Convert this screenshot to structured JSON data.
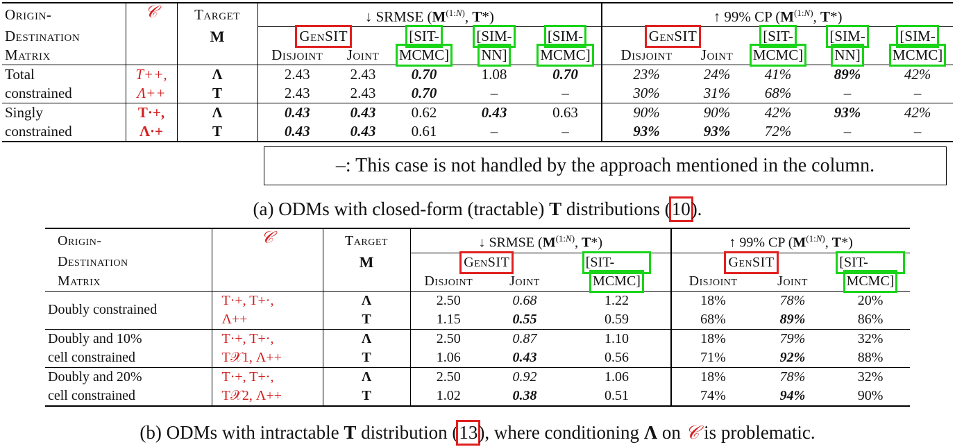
{
  "table_a": {
    "header": {
      "odm_l1": "Origin-",
      "odm_l2": "Destination",
      "odm_l3": "Matrix",
      "c": "𝒞",
      "target_l1": "Target",
      "target_l2": "M",
      "srmse": "↓ SRMSE (M(1:N), T*)",
      "cp": "↑ 99% CP (M(1:N), T*)",
      "gensit": "GenSIT",
      "disjoint": "Disjoint",
      "joint": "Joint",
      "sit_l1": "[SIT-",
      "sit_l2": "MCMC]",
      "simnn_l1": "[SIM-",
      "simnn_l2": "NN]",
      "simmcmc_l1": "[SIM-",
      "simmcmc_l2": "MCMC]"
    },
    "rows": [
      {
        "odm": "Total",
        "c": "T++,",
        "target": "Λ",
        "v": [
          "2.43",
          "2.43",
          "0.70",
          "1.08",
          "0.70",
          "23%",
          "24%",
          "41%",
          "89%",
          "42%"
        ]
      },
      {
        "odm": "constrained",
        "c": "Λ++",
        "target": "T",
        "v": [
          "2.43",
          "2.43",
          "0.70",
          "–",
          "–",
          "30%",
          "31%",
          "68%",
          "–",
          "–"
        ]
      },
      {
        "odm": "Singly",
        "c": "T·+,",
        "target": "Λ",
        "v": [
          "0.43",
          "0.43",
          "0.62",
          "0.43",
          "0.63",
          "90%",
          "90%",
          "42%",
          "93%",
          "42%"
        ]
      },
      {
        "odm": "constrained",
        "c": "Λ·+",
        "target": "T",
        "v": [
          "0.43",
          "0.43",
          "0.61",
          "–",
          "–",
          "93%",
          "93%",
          "72%",
          "–",
          "–"
        ]
      }
    ]
  },
  "note": "–: This case is not handled by the approach mentioned in the column.",
  "caption_a": "(a) ODMs with closed-form (tractable) T distributions (10).",
  "table_b": {
    "header": {
      "odm_l1": "Origin-",
      "odm_l2": "Destination",
      "odm_l3": "Matrix",
      "c": "𝒞",
      "target_l1": "Target",
      "target_l2": "M",
      "srmse": "↓ SRMSE (M(1:N), T*)",
      "cp": "↑ 99% CP (M(1:N), T*)",
      "gensit": "GenSIT",
      "disjoint": "Disjoint",
      "joint": "Joint",
      "sit_l1": "[SIT-",
      "sit_l2": "MCMC]"
    },
    "rows": [
      {
        "odm": "Doubly constrained",
        "c1": "T·+, T+·,",
        "c2": "Λ++",
        "r1": {
          "target": "Λ",
          "v": [
            "2.50",
            "0.68",
            "1.22",
            "18%",
            "78%",
            "20%"
          ]
        },
        "r2": {
          "target": "T",
          "v": [
            "1.15",
            "0.55",
            "0.59",
            "68%",
            "89%",
            "86%"
          ]
        }
      },
      {
        "odm_l1": "Doubly and 10%",
        "odm_l2": "cell constrained",
        "c1": "T·+, T+·,",
        "c2": "T𝒳1, Λ++",
        "r1": {
          "target": "Λ",
          "v": [
            "2.50",
            "0.87",
            "1.10",
            "18%",
            "79%",
            "32%"
          ]
        },
        "r2": {
          "target": "T",
          "v": [
            "1.06",
            "0.43",
            "0.56",
            "71%",
            "92%",
            "88%"
          ]
        }
      },
      {
        "odm_l1": "Doubly and 20%",
        "odm_l2": "cell constrained",
        "c1": "T·+, T+·,",
        "c2": "T𝒳2, Λ++",
        "r1": {
          "target": "Λ",
          "v": [
            "2.50",
            "0.92",
            "1.06",
            "18%",
            "78%",
            "32%"
          ]
        },
        "r2": {
          "target": "T",
          "v": [
            "1.02",
            "0.38",
            "0.51",
            "74%",
            "94%",
            "90%"
          ]
        }
      }
    ]
  },
  "caption_b": "(b) ODMs with intractable T distribution (13), where conditioning Λ on 𝒞 is problematic."
}
